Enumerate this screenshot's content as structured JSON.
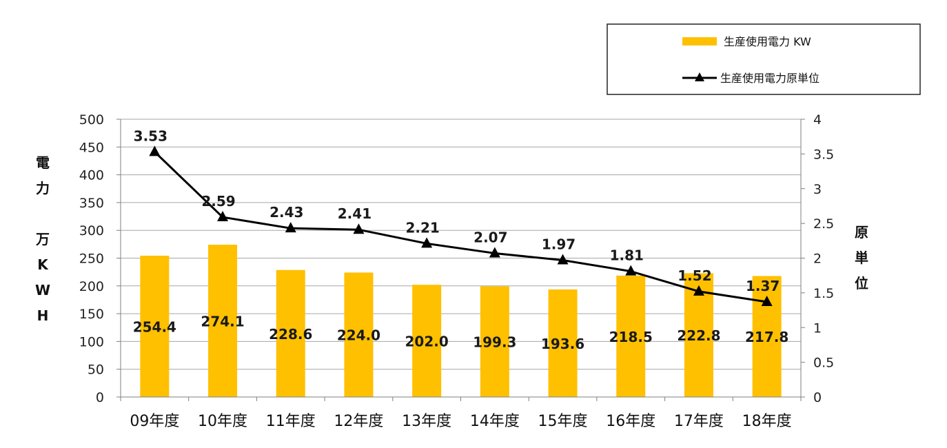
{
  "chart_data": {
    "type": "bar",
    "categories": [
      "09年度",
      "10年度",
      "11年度",
      "12年度",
      "13年度",
      "14年度",
      "15年度",
      "16年度",
      "17年度",
      "18年度"
    ],
    "series": [
      {
        "name": "生産使用電力 KW",
        "type": "bar",
        "axis": "left",
        "color": "#FFC000",
        "values": [
          254.4,
          274.1,
          228.6,
          224.0,
          202.0,
          199.3,
          193.6,
          218.5,
          222.8,
          217.8
        ],
        "labels": [
          "254.4",
          "274.1",
          "228.6",
          "224.0",
          "202.0",
          "199.3",
          "193.6",
          "218.5",
          "222.8",
          "217.8"
        ]
      },
      {
        "name": "生産使用電力原単位",
        "type": "line",
        "axis": "right",
        "color": "#000000",
        "marker": "triangle",
        "values": [
          3.53,
          2.59,
          2.43,
          2.41,
          2.21,
          2.07,
          1.97,
          1.81,
          1.52,
          1.37
        ],
        "labels": [
          "3.53",
          "2.59",
          "2.43",
          "2.41",
          "2.21",
          "2.07",
          "1.97",
          "1.81",
          "1.52",
          "1.37"
        ]
      }
    ],
    "y_left": {
      "label_lines": [
        "電",
        "力",
        "",
        "万",
        "K",
        "W",
        "H"
      ],
      "ylim": [
        0,
        500
      ],
      "ticks": [
        "0",
        "50",
        "100",
        "150",
        "200",
        "250",
        "300",
        "350",
        "400",
        "450",
        "500"
      ]
    },
    "y_right": {
      "label_lines": [
        "原",
        "単",
        "位"
      ],
      "ylim": [
        0,
        4
      ],
      "ticks": [
        "0",
        "0.5",
        "1",
        "1.5",
        "2",
        "2.5",
        "3",
        "3.5",
        "4"
      ]
    },
    "grid": true,
    "legend": "top-right"
  }
}
